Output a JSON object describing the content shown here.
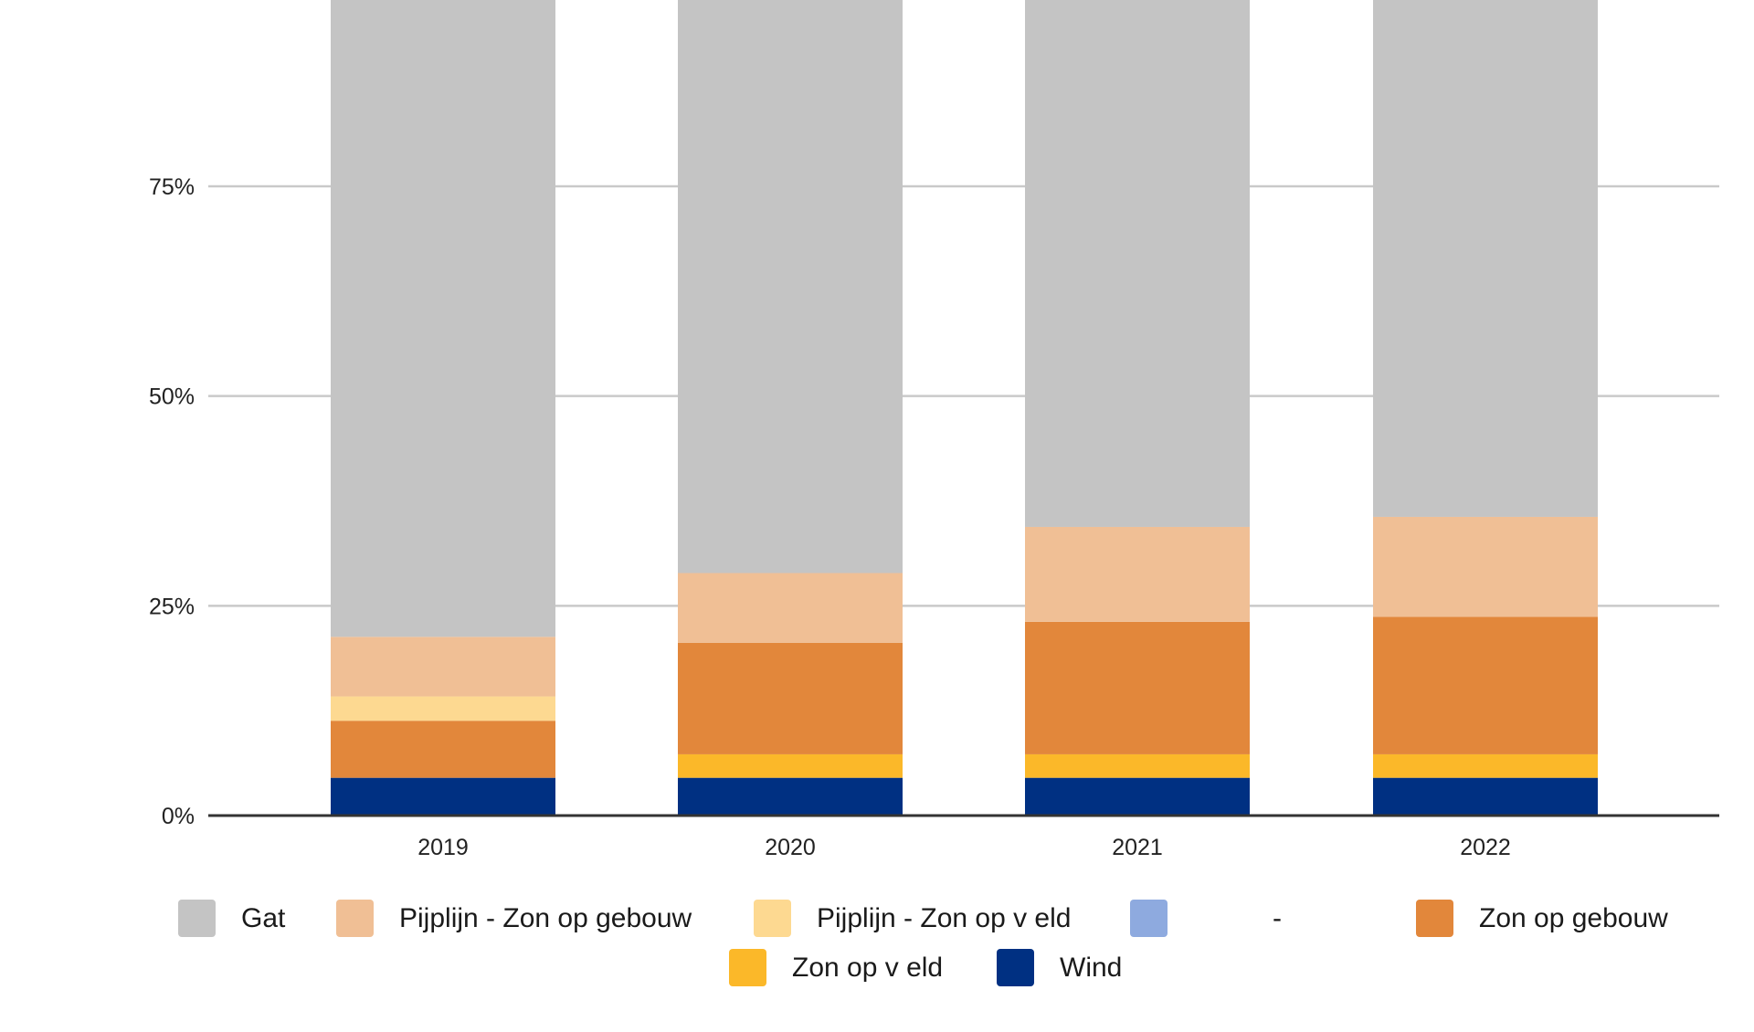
{
  "chart_data": {
    "type": "bar",
    "stacked": true,
    "percent": true,
    "categories": [
      "2019",
      "2020",
      "2021",
      "2022"
    ],
    "ylim": [
      0,
      100
    ],
    "yticks": [
      "0%",
      "25%",
      "50%",
      "75%"
    ],
    "grid": true,
    "legend_position": "bottom",
    "series": [
      {
        "name": "Wind",
        "color": "#003082",
        "values": [
          4.5,
          4.5,
          4.5,
          4.5
        ]
      },
      {
        "name": "Zon op veld",
        "color": "#fbb829",
        "values": [
          0,
          2.8,
          2.8,
          2.8
        ]
      },
      {
        "name": "Zon op gebouw",
        "color": "#e2873b",
        "values": [
          6.8,
          13.3,
          15.8,
          16.4
        ]
      },
      {
        "name": "-",
        "color": "#8eaadf",
        "values": [
          0,
          0,
          0,
          0
        ]
      },
      {
        "name": "Pijplijn - Zon op veld",
        "color": "#fdd991",
        "values": [
          2.9,
          0,
          0,
          0
        ]
      },
      {
        "name": "Pijplijn - Zon op gebouw",
        "color": "#f0bf95",
        "values": [
          7.1,
          8.3,
          11.3,
          11.9
        ]
      },
      {
        "name": "Gat",
        "color": "#c4c4c4",
        "values": [
          78.7,
          71.1,
          65.6,
          64.4
        ]
      }
    ]
  },
  "legend": [
    {
      "label": "Gat",
      "color": "#c4c4c4"
    },
    {
      "label": "Pijplijn - Zon op gebouw",
      "color": "#f0bf95"
    },
    {
      "label": "Pijplijn - Zon op v eld",
      "color": "#fdd991"
    },
    {
      "label": "-",
      "color": "#8eaadf"
    },
    {
      "label": "Zon op gebouw",
      "color": "#e2873b"
    },
    {
      "label": "Zon op v eld",
      "color": "#fbb829"
    },
    {
      "label": "Wind",
      "color": "#003082"
    }
  ]
}
